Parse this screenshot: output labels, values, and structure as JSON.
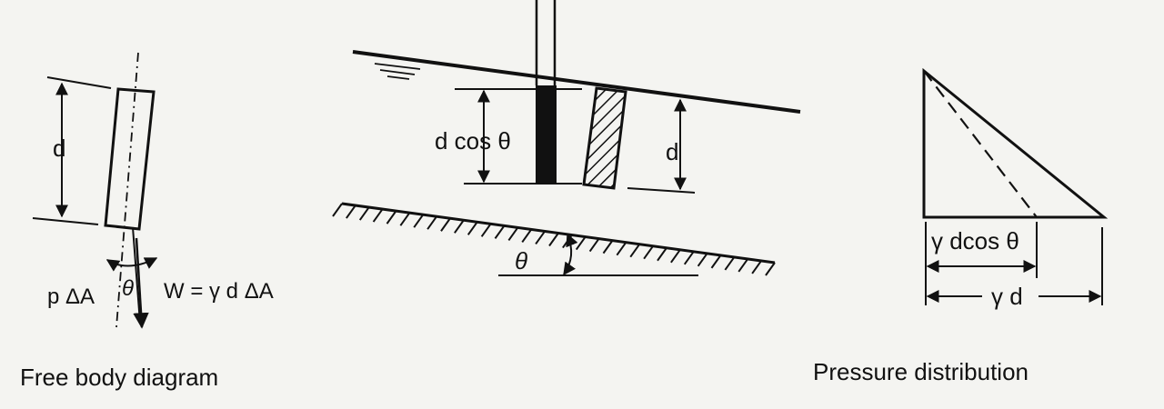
{
  "fbd": {
    "caption": "Free body diagram",
    "label_d": "d",
    "label_theta": "θ",
    "label_pressure_force": "p ΔA",
    "label_weight": "W = γ d ΔA"
  },
  "channel": {
    "label_dcos": "d cos θ",
    "label_d": "d",
    "label_theta": "θ"
  },
  "pressure": {
    "caption": "Pressure distribution",
    "label_gamma_dcos": "γ dcos θ",
    "label_gamma_d": "γ d"
  }
}
